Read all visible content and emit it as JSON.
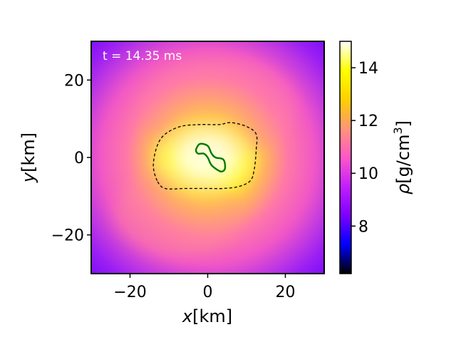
{
  "chart_data": {
    "type": "heatmap",
    "annotation": "t = 14.35 ms",
    "xlabel": {
      "italic": "x",
      "rest": "[km]"
    },
    "ylabel": {
      "italic": "y",
      "rest": "[km]"
    },
    "colorbar_label": {
      "italic": "ρ",
      "rest": "[g/cm",
      "sup": "3",
      "close": "]"
    },
    "xlim": [
      -30,
      30
    ],
    "ylim": [
      -30,
      30
    ],
    "xticks": [
      -20,
      0,
      20
    ],
    "yticks": [
      -20,
      0,
      20
    ],
    "colorbar_range": [
      6.2,
      15
    ],
    "colorbar_ticks": [
      8,
      10,
      12,
      14
    ],
    "colormap": [
      "#000000",
      "#0000ff",
      "#7d00ff",
      "#c11ffd",
      "#ff57c8",
      "#ff9577",
      "#ffd100",
      "#ffff00",
      "#ffffff"
    ],
    "contours": [
      {
        "style": "dashed",
        "color": "#000000",
        "points": [
          [
            -13,
            -6
          ],
          [
            -14,
            -2
          ],
          [
            -13,
            3
          ],
          [
            -11,
            6
          ],
          [
            -7,
            8
          ],
          [
            -2,
            8.5
          ],
          [
            3,
            8.5
          ],
          [
            6,
            9
          ],
          [
            10,
            8
          ],
          [
            12.5,
            6
          ],
          [
            12.5,
            2
          ],
          [
            12,
            -3
          ],
          [
            11,
            -6
          ],
          [
            8,
            -7.5
          ],
          [
            4,
            -8
          ],
          [
            0,
            -8
          ],
          [
            -3,
            -8
          ],
          [
            -6,
            -8
          ],
          [
            -11,
            -8
          ]
        ]
      },
      {
        "style": "solid",
        "color": "#007a00",
        "points": [
          [
            -3,
            2
          ],
          [
            -2,
            3.5
          ],
          [
            0,
            3
          ],
          [
            1,
            1
          ],
          [
            2,
            0
          ],
          [
            4,
            -0.5
          ],
          [
            4.5,
            -2.5
          ],
          [
            4,
            -3.5
          ],
          [
            3,
            -3.5
          ],
          [
            1,
            -2
          ],
          [
            0,
            0
          ],
          [
            -1,
            1
          ],
          [
            -2.5,
            1
          ]
        ]
      }
    ]
  }
}
